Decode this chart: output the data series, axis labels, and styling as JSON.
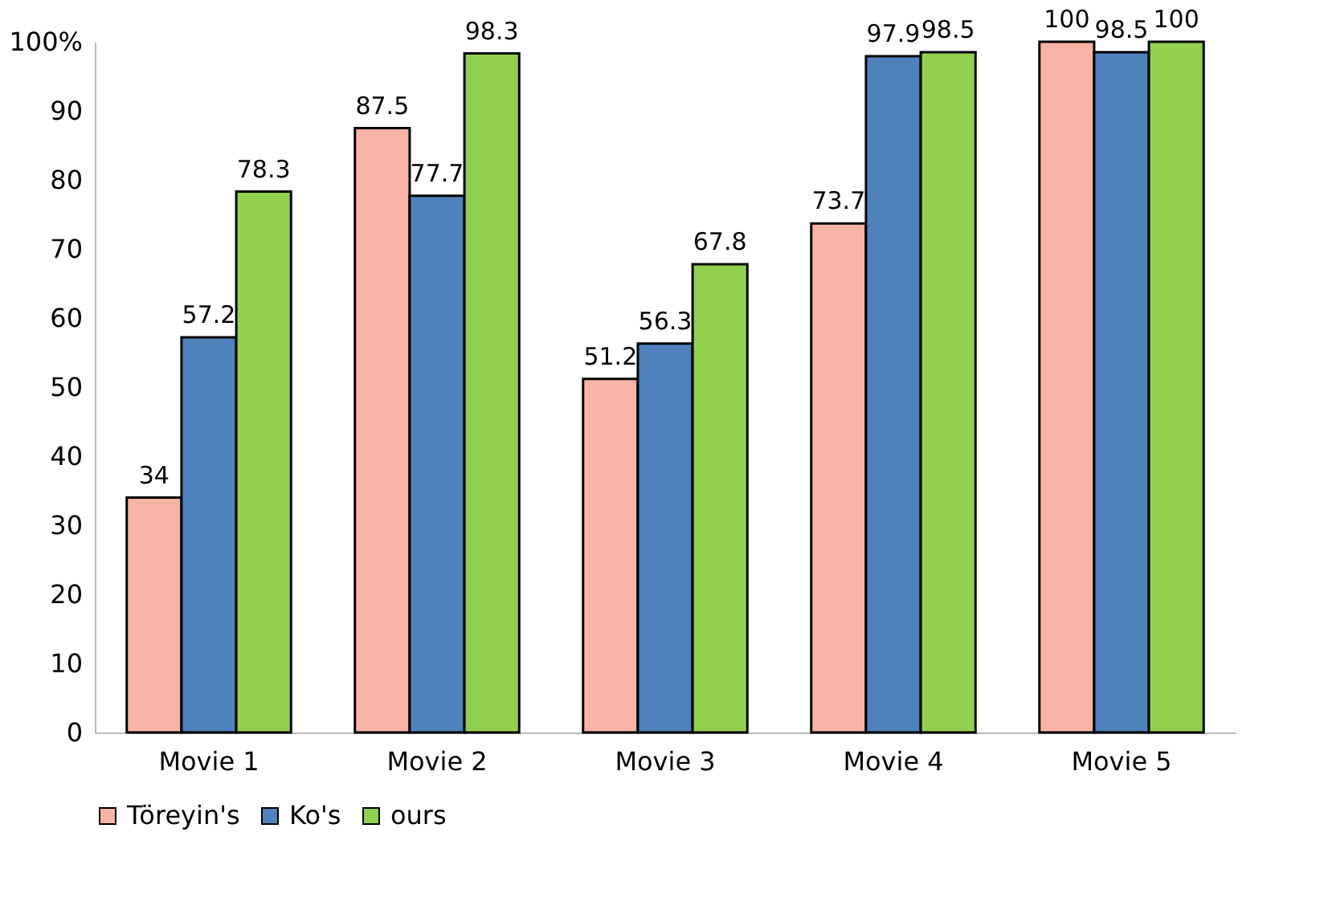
{
  "chart_data": {
    "type": "bar",
    "categories": [
      "Movie 1",
      "Movie 2",
      "Movie 3",
      "Movie 4",
      "Movie 5"
    ],
    "series": [
      {
        "name": "Töreyin's",
        "color": "#f9b3a6",
        "values": [
          34,
          87.5,
          51.2,
          73.7,
          100
        ]
      },
      {
        "name": "Ko's",
        "color": "#4f81bd",
        "values": [
          57.2,
          77.7,
          56.3,
          97.9,
          98.5
        ]
      },
      {
        "name": "ours",
        "color": "#92d050",
        "values": [
          78.3,
          98.3,
          67.8,
          98.5,
          100
        ]
      }
    ],
    "ylim": [
      0,
      100
    ],
    "yticks": [
      0,
      10,
      20,
      30,
      40,
      50,
      60,
      70,
      80,
      90,
      {
        "value": 100,
        "label": "100%"
      }
    ],
    "data_labels": true,
    "grid": false,
    "legend": "bottom"
  }
}
